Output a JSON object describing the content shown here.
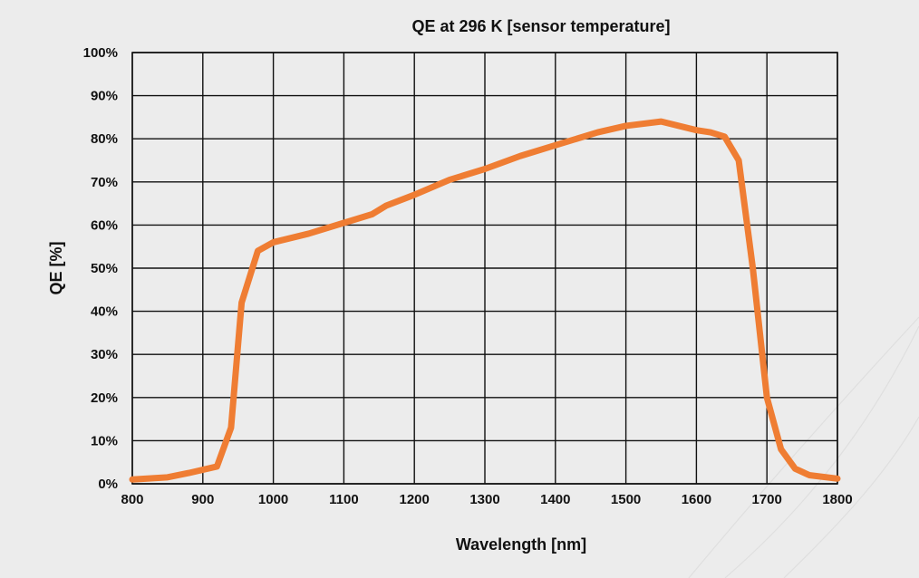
{
  "chart_data": {
    "type": "line",
    "title": "QE at 296 K [sensor temperature]",
    "xlabel": "Wavelength [nm]",
    "ylabel": "QE [%]",
    "xlim": [
      800,
      1800
    ],
    "ylim": [
      0,
      100
    ],
    "x_ticks": [
      "800",
      "900",
      "1000",
      "1100",
      "1200",
      "1300",
      "1400",
      "1500",
      "1600",
      "1700",
      "1800"
    ],
    "y_ticks": [
      "0%",
      "10%",
      "20%",
      "30%",
      "40%",
      "50%",
      "60%",
      "70%",
      "80%",
      "90%",
      "100%"
    ],
    "grid": true,
    "series": [
      {
        "color": "#ef7d33",
        "x": [
          800,
          850,
          880,
          920,
          940,
          955,
          978,
          1000,
          1050,
          1100,
          1140,
          1160,
          1200,
          1250,
          1300,
          1350,
          1400,
          1420,
          1460,
          1500,
          1550,
          1600,
          1620,
          1640,
          1660,
          1680,
          1700,
          1720,
          1740,
          1760,
          1800
        ],
        "y": [
          1,
          1.5,
          2.5,
          4,
          13,
          42,
          54,
          56,
          58,
          60.5,
          62.5,
          64.5,
          67,
          70.5,
          73,
          76,
          78.5,
          79.5,
          81.5,
          83,
          84,
          82,
          81.5,
          80.5,
          75,
          50,
          20,
          8,
          3.5,
          2,
          1.2
        ]
      }
    ]
  }
}
